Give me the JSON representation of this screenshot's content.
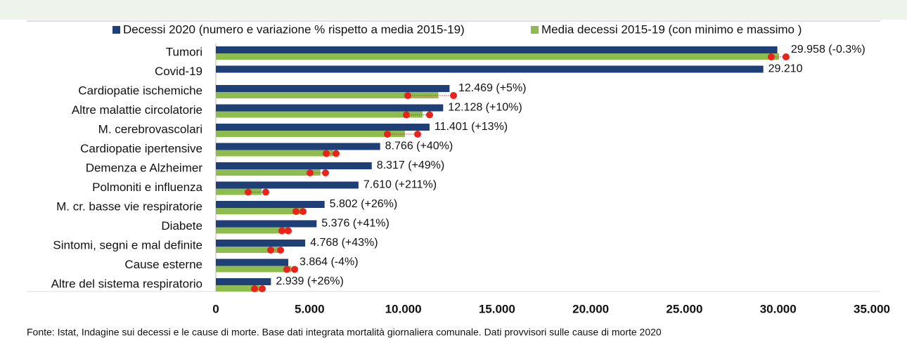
{
  "chart_data": {
    "type": "bar",
    "orientation": "horizontal",
    "categories": [
      "Tumori",
      "Covid-19",
      "Cardiopatie ischemiche",
      "Altre malattie circolatorie",
      "M. cerebrovascolari",
      "Cardiopatie ipertensive",
      "Demenza e Alzheimer",
      "Polmoniti e influenza",
      "M. cr. basse vie respiratorie",
      "Diabete",
      "Sintomi, segni e mal definite",
      "Cause esterne",
      "Altre del sistema respiratorio"
    ],
    "series": [
      {
        "name": "Decessi 2020 (numero e variazione % rispetto a media 2015-19)",
        "color": "#1f3f77",
        "values": [
          29958,
          29210,
          12469,
          12128,
          11401,
          8766,
          8317,
          7610,
          5802,
          5376,
          4768,
          3864,
          2939
        ],
        "value_labels": [
          "29.958 (-0.3%)",
          "29.210",
          "12.469 (+5%)",
          "12.128 (+10%)",
          "11.401 (+13%)",
          "8.766 (+40%)",
          "8.317 (+49%)",
          "7.610 (+211%)",
          "5.802 (+26%)",
          "5.376 (+41%)",
          "4.768 (+43%)",
          "3.864 (-4%)",
          "2.939 (+26%)"
        ]
      },
      {
        "name": "Media decessi 2015-19 (con minimo e massimo )",
        "color": "#8fbc4e",
        "values": [
          30048,
          null,
          11875,
          11025,
          10089,
          6261,
          5582,
          2447,
          4605,
          3813,
          3334,
          4025,
          2333
        ],
        "min": [
          29633,
          null,
          10240,
          10165,
          9152,
          5889,
          5026,
          1725,
          4276,
          3526,
          2926,
          3788,
          2063
        ],
        "max": [
          30420,
          null,
          12680,
          11403,
          10765,
          6414,
          5851,
          2663,
          4651,
          3863,
          3451,
          4201,
          2476
        ],
        "marker_color": "#e8231b"
      }
    ],
    "xlim": [
      0,
      35000
    ],
    "xticks": [
      0,
      {
        "value": 5000,
        "label": "5.000"
      },
      {
        "value": 10000,
        "label": "10.000"
      },
      {
        "value": 15000,
        "label": "15.000"
      },
      {
        "value": 20000,
        "label": "20.000"
      },
      {
        "value": 25000,
        "label": "25.000"
      },
      {
        "value": 30000,
        "label": "30.000"
      },
      {
        "value": 35000,
        "label": "35.000"
      }
    ],
    "source": "Fonte: Istat, Indagine sui decessi e le cause di morte. Base dati integrata mortalità giornaliera comunale. Dati provvisori sulle cause di morte 2020"
  }
}
